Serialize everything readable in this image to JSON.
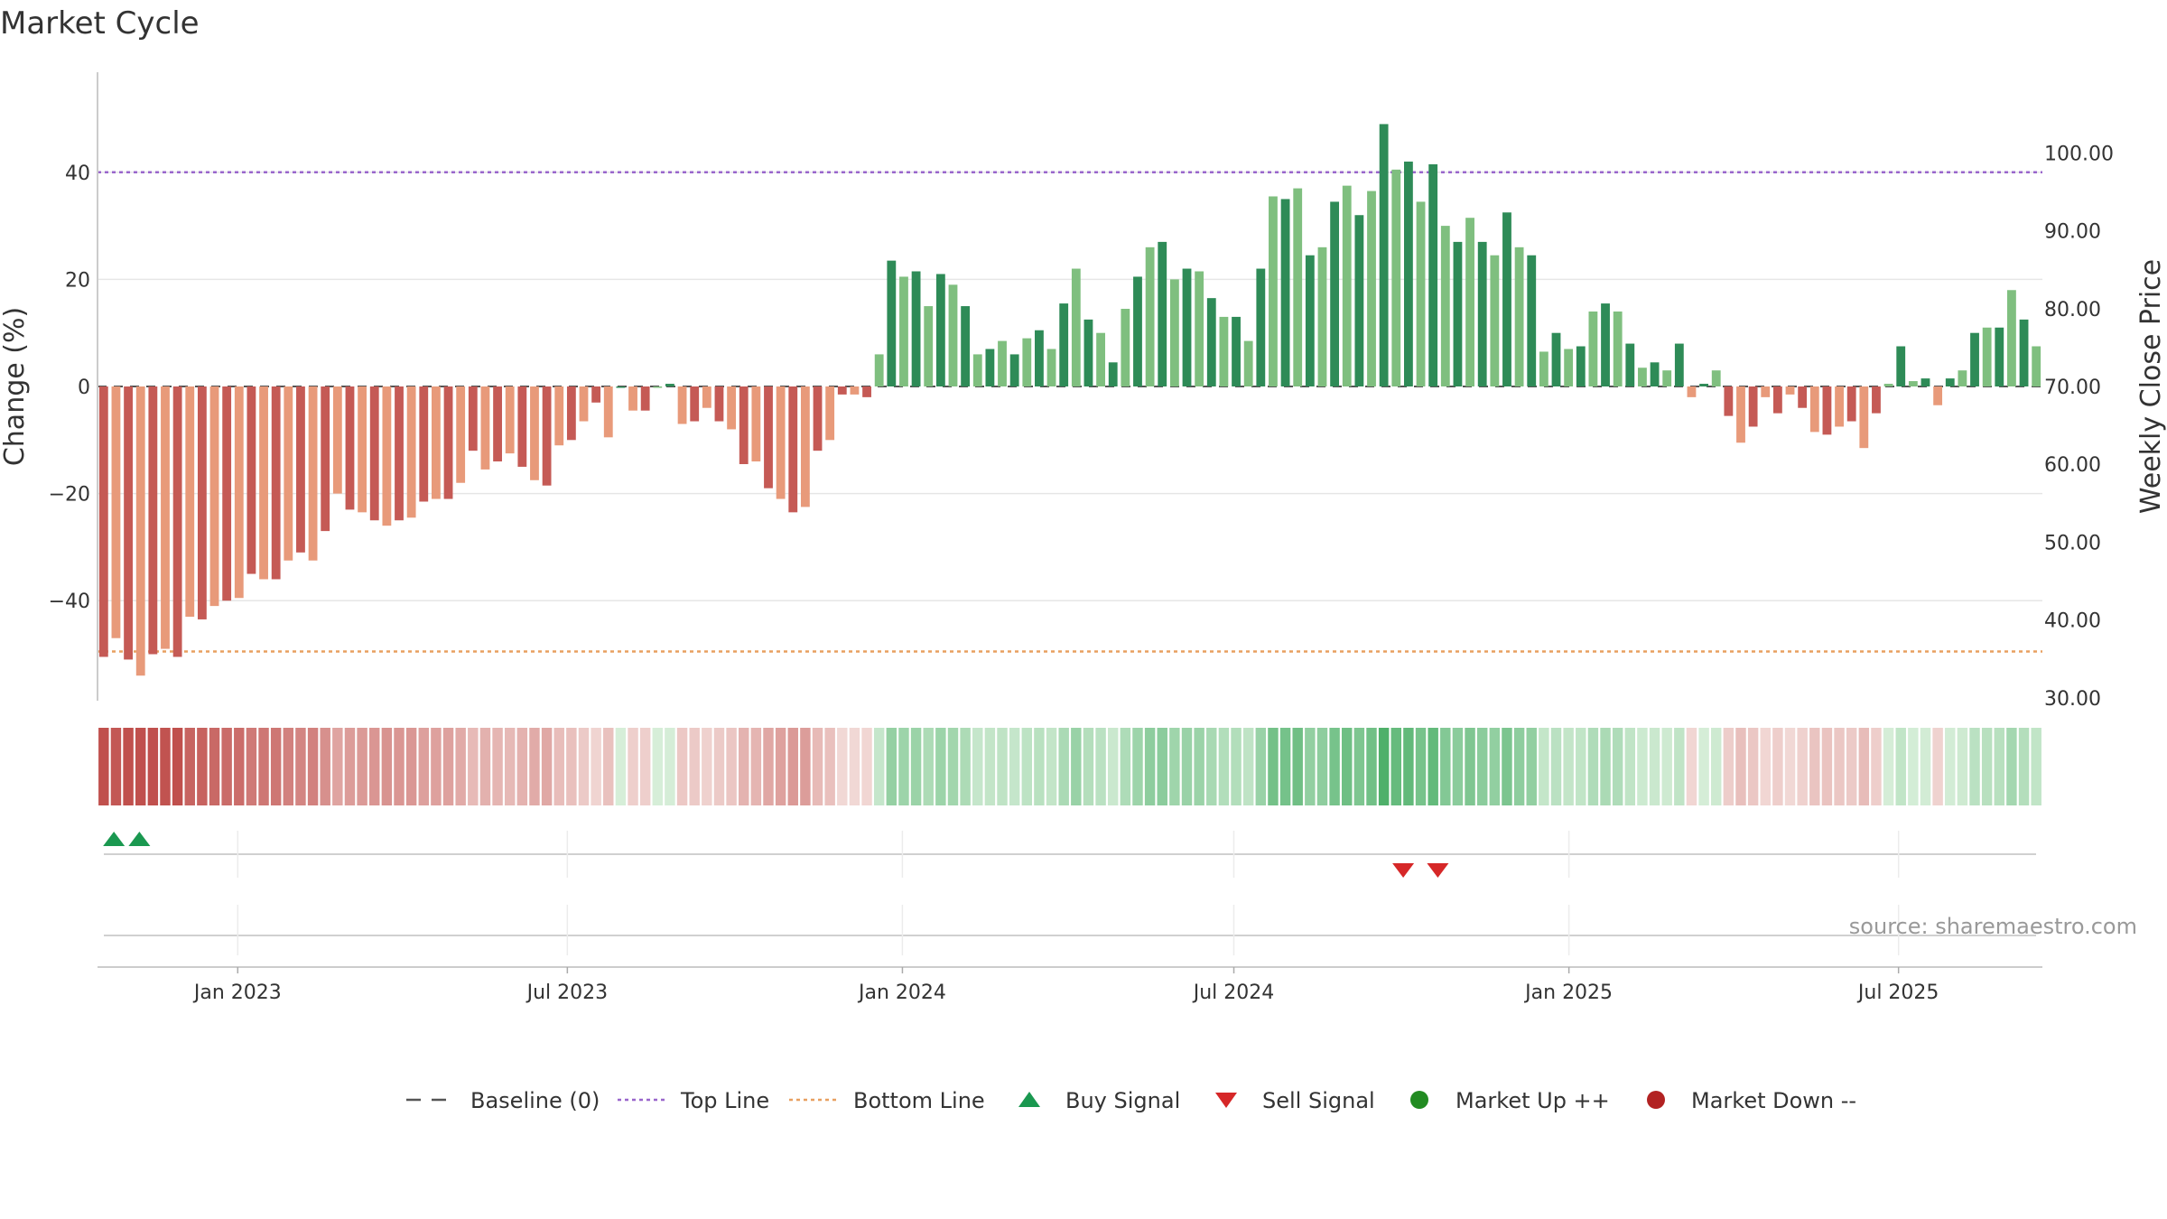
{
  "chart_data": {
    "type": "bar",
    "title": "Market Cycle",
    "ylabel_left": "Change (%)",
    "ylabel_right": "Weekly Close Price",
    "ylim_left": [
      -59,
      59
    ],
    "y_ticks_left": [
      40,
      20,
      0,
      -20,
      -40
    ],
    "y_tick_labels_left": [
      "40",
      "20",
      "0",
      "−20",
      "−40"
    ],
    "ylim_right": [
      26.4,
      105
    ],
    "y_ticks_right": [
      100,
      90,
      80,
      70,
      60,
      50,
      40,
      30
    ],
    "y_tick_labels_right": [
      "100.00",
      "90.00",
      "80.00",
      "70.00",
      "60.00",
      "50.00",
      "40.00",
      "30.00"
    ],
    "x_start_date": "2022-10-16",
    "x_end_date": "2025-09-18",
    "x_ticks": [
      "2023-01-01",
      "2023-07-01",
      "2024-01-01",
      "2024-07-01",
      "2025-01-01",
      "2025-07-01"
    ],
    "x_tick_labels": [
      "Jan 2023",
      "Jul 2023",
      "Jan 2024",
      "Jul 2024",
      "Jan 2025",
      "Jul 2025"
    ],
    "top_line": 40,
    "bottom_line": -49.5,
    "baseline": 0,
    "values": [
      -50.5,
      -47,
      -51,
      -54,
      -50,
      -49,
      -50.5,
      -43,
      -43.5,
      -41,
      -40,
      -39.5,
      -35,
      -36,
      -36,
      -32.5,
      -31,
      -32.5,
      -27,
      -20,
      -23,
      -23.5,
      -25,
      -26,
      -25,
      -24.5,
      -21.5,
      -21,
      -21,
      -18,
      -12,
      -15.5,
      -14,
      -12.5,
      -15,
      -17.5,
      -18.5,
      -11,
      -10,
      -6.5,
      -3,
      -9.5,
      0,
      -4.5,
      -4.5,
      0,
      0.5,
      -7,
      -6.5,
      -4,
      -6.5,
      -8,
      -14.5,
      -14,
      -19,
      -21,
      -23.5,
      -22.5,
      -12,
      -10,
      -1.5,
      -1.5,
      -2,
      6,
      23.5,
      20.5,
      21.5,
      15,
      21,
      19,
      15,
      6,
      7,
      8.5,
      6,
      9,
      10.5,
      7,
      15.5,
      22,
      12.5,
      10,
      4.5,
      14.5,
      20.5,
      26,
      27,
      20,
      22,
      21.5,
      16.5,
      13,
      13,
      8.5,
      22,
      35.5,
      35,
      37,
      24.5,
      26,
      34.5,
      37.5,
      32,
      36.5,
      49,
      40.5,
      42,
      34.5,
      41.5,
      30,
      27,
      31.5,
      27,
      24.5,
      32.5,
      26,
      24.5,
      6.5,
      10,
      7,
      7.5,
      14,
      15.5,
      14,
      8,
      3.5,
      4.5,
      3,
      8,
      -2,
      0.5,
      3,
      -5.5,
      -10.5,
      -7.5,
      -2,
      -5,
      -1.5,
      -4,
      -8.5,
      -9,
      -7.5,
      -6.5,
      -11.5,
      -5,
      0.5,
      7.5,
      1,
      1.5,
      -3.5,
      1.5,
      3,
      10,
      11,
      11,
      18,
      12.5,
      7.5
    ],
    "bar_style_pattern": [
      "solid",
      "light"
    ],
    "buy_signal_dates": [
      "2022-10-25",
      "2022-11-08"
    ],
    "sell_signal_dates": [
      "2024-10-02",
      "2024-10-21"
    ],
    "legend_position": "bottom",
    "source": "source: sharemaestro.com",
    "legend": [
      {
        "label": "Baseline (0)",
        "marker": "dash"
      },
      {
        "label": "Top Line",
        "marker": "dotted-purple"
      },
      {
        "label": "Bottom Line",
        "marker": "dotted-orange"
      },
      {
        "label": "Buy Signal",
        "marker": "triangle-up"
      },
      {
        "label": "Sell Signal",
        "marker": "triangle-down"
      },
      {
        "label": "Market Up ++",
        "marker": "circle-green"
      },
      {
        "label": "Market Down --",
        "marker": "circle-red"
      }
    ],
    "colors": {
      "red_solid": "#c55a55",
      "red_light": "#e89a7a",
      "green_solid": "#2e8b57",
      "green_light": "#7fbf7f",
      "top_line": "#9966cc",
      "bottom_line": "#e8a060",
      "buy": "#1a9850",
      "sell": "#d62728",
      "market_up": "#228b22",
      "market_down": "#b22222",
      "grid": "#e6e6e6",
      "axis": "#cccccc"
    }
  }
}
